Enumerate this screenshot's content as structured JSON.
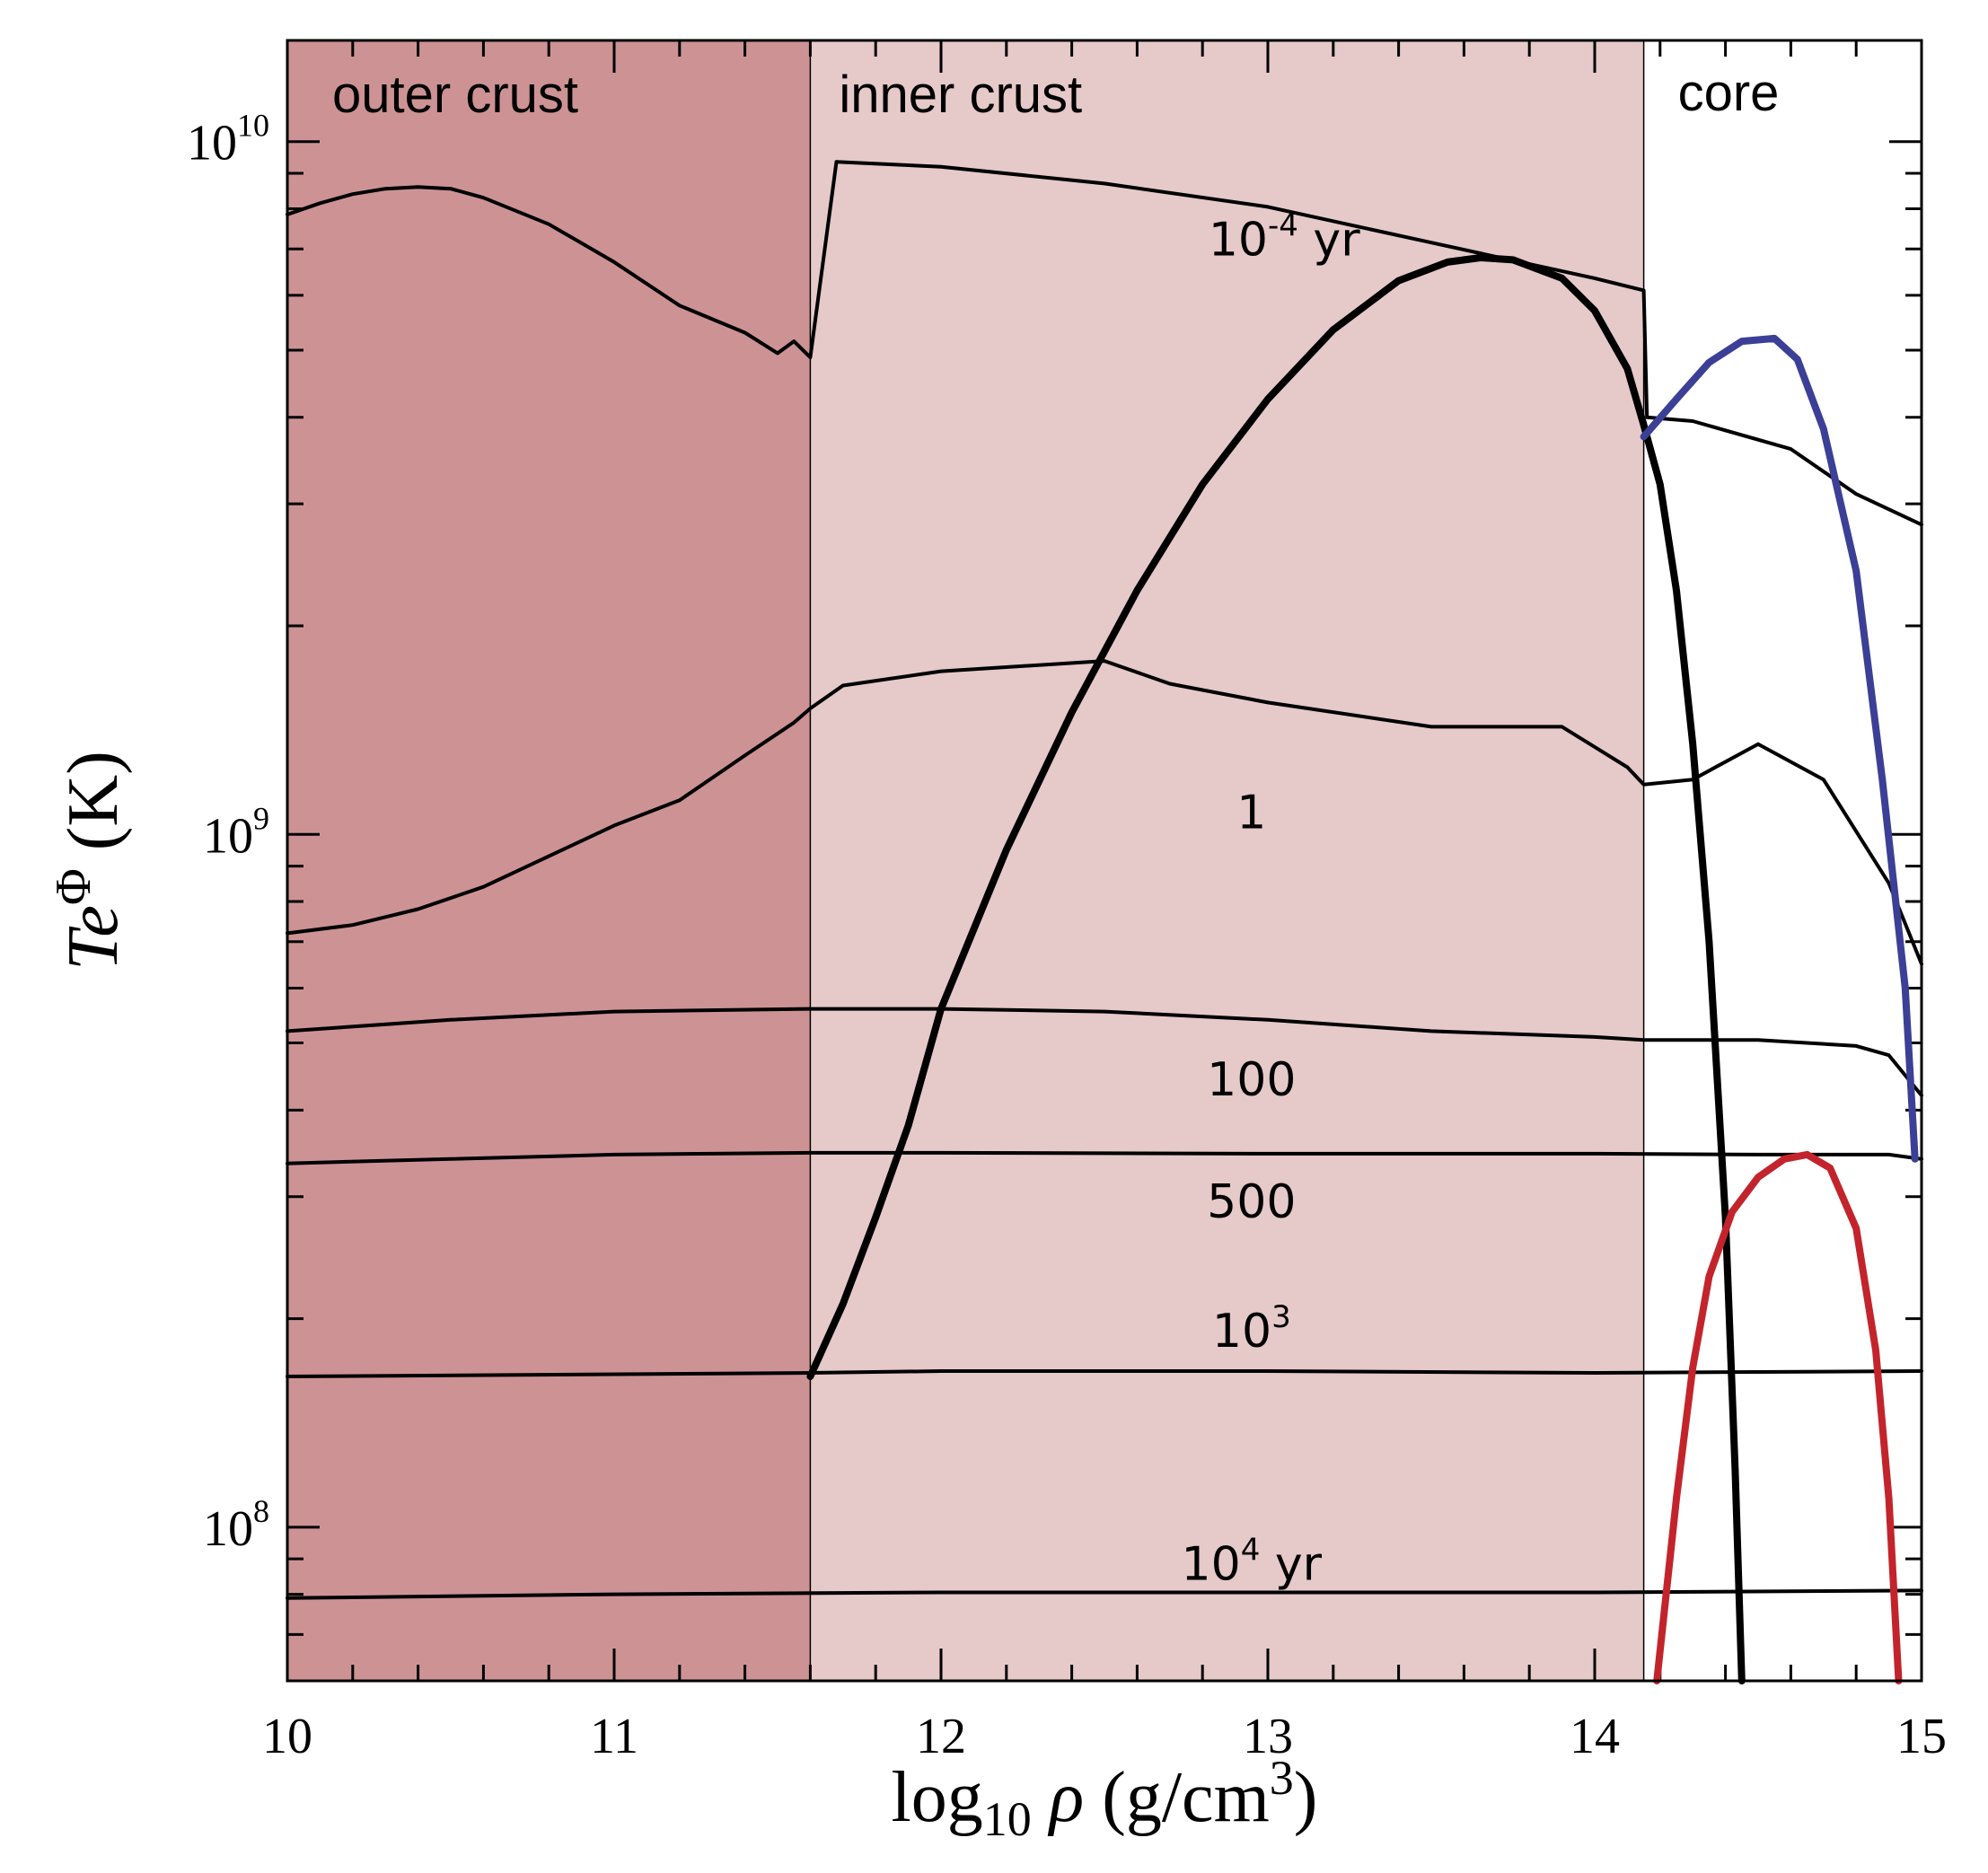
{
  "chart_data": {
    "type": "line",
    "xlabel": "log10 ρ (g/cm3)",
    "ylabel": "Te^Φ (K)",
    "xlim": [
      10,
      15
    ],
    "ylim": [
      60000000,
      14000000000
    ],
    "yscale": "log",
    "x_ticks": [
      {
        "value": 10,
        "label": "10"
      },
      {
        "value": 11,
        "label": "11"
      },
      {
        "value": 12,
        "label": "12"
      },
      {
        "value": 13,
        "label": "13"
      },
      {
        "value": 14,
        "label": "14"
      },
      {
        "value": 15,
        "label": "15"
      }
    ],
    "y_ticks": [
      {
        "value": 100000000,
        "base": "10",
        "exp": "8"
      },
      {
        "value": 1000000000,
        "base": "10",
        "exp": "9"
      },
      {
        "value": 10000000000,
        "base": "10",
        "exp": "10"
      }
    ],
    "regions": [
      {
        "name": "outer crust",
        "x_from": 10,
        "x_to": 11.6,
        "color": "#cd9394"
      },
      {
        "name": "inner crust",
        "x_from": 11.6,
        "x_to": 14.15,
        "color": "#e6c9c9"
      },
      {
        "name": "core",
        "x_from": 14.15,
        "x_to": 15,
        "color": "#ffffff"
      }
    ],
    "series": [
      {
        "name": "10^-4 yr",
        "label_base": "10",
        "label_exp": "-4",
        "label_unit": "yr",
        "label_at": [
          13.05,
          6850000000
        ],
        "color": "#000000",
        "width": "thin",
        "points": [
          [
            10,
            7850000000
          ],
          [
            10.1,
            8150000000
          ],
          [
            10.2,
            8400000000
          ],
          [
            10.3,
            8550000000
          ],
          [
            10.4,
            8600000000
          ],
          [
            10.5,
            8550000000
          ],
          [
            10.6,
            8300000000
          ],
          [
            10.8,
            7600000000
          ],
          [
            11.0,
            6700000000
          ],
          [
            11.2,
            5800000000
          ],
          [
            11.4,
            5300000000
          ],
          [
            11.5,
            4950000000
          ],
          [
            11.55,
            5150000000
          ],
          [
            11.6,
            4880000000
          ],
          [
            11.68,
            9350000000
          ],
          [
            12.0,
            9200000000
          ],
          [
            12.5,
            8700000000
          ],
          [
            13.0,
            8050000000
          ],
          [
            13.5,
            7150000000
          ],
          [
            14.0,
            6350000000
          ],
          [
            14.15,
            6100000000
          ],
          [
            14.16,
            4000000000
          ],
          [
            14.3,
            3950000000
          ],
          [
            14.6,
            3600000000
          ],
          [
            14.8,
            3100000000
          ],
          [
            15.0,
            2800000000
          ]
        ]
      },
      {
        "name": "1",
        "label": "1",
        "label_at": [
          12.95,
          1020000000
        ],
        "color": "#000000",
        "width": "thin",
        "points": [
          [
            10,
            720000000
          ],
          [
            10.2,
            740000000
          ],
          [
            10.4,
            780000000
          ],
          [
            10.6,
            840000000
          ],
          [
            10.8,
            930000000
          ],
          [
            11.0,
            1030000000
          ],
          [
            11.2,
            1120000000
          ],
          [
            11.4,
            1300000000
          ],
          [
            11.55,
            1450000000
          ],
          [
            11.6,
            1520000000
          ],
          [
            11.7,
            1640000000
          ],
          [
            12.0,
            1720000000
          ],
          [
            12.5,
            1780000000
          ],
          [
            12.7,
            1650000000
          ],
          [
            13.0,
            1550000000
          ],
          [
            13.5,
            1430000000
          ],
          [
            13.9,
            1430000000
          ],
          [
            14.1,
            1250000000
          ],
          [
            14.15,
            1180000000
          ],
          [
            14.3,
            1200000000
          ],
          [
            14.5,
            1350000000
          ],
          [
            14.7,
            1200000000
          ],
          [
            14.9,
            850000000
          ],
          [
            15.0,
            650000000
          ]
        ]
      },
      {
        "name": "100",
        "label": "100",
        "label_at": [
          12.95,
          420000000
        ],
        "color": "#000000",
        "width": "thin",
        "points": [
          [
            10,
            520000000
          ],
          [
            10.5,
            540000000
          ],
          [
            11.0,
            555000000
          ],
          [
            11.6,
            560000000
          ],
          [
            12.0,
            560000000
          ],
          [
            12.5,
            555000000
          ],
          [
            13.0,
            540000000
          ],
          [
            13.5,
            520000000
          ],
          [
            14.0,
            510000000
          ],
          [
            14.15,
            505000000
          ],
          [
            14.5,
            505000000
          ],
          [
            14.8,
            495000000
          ],
          [
            14.9,
            480000000
          ],
          [
            15.0,
            420000000
          ]
        ]
      },
      {
        "name": "500",
        "label": "500",
        "label_at": [
          12.95,
          280000000
        ],
        "color": "#000000",
        "width": "thin",
        "points": [
          [
            10,
            335000000
          ],
          [
            10.5,
            340000000
          ],
          [
            11.0,
            345000000
          ],
          [
            11.6,
            347000000
          ],
          [
            12.0,
            347000000
          ],
          [
            13.0,
            346000000
          ],
          [
            14.0,
            346000000
          ],
          [
            14.5,
            345000000
          ],
          [
            14.9,
            345000000
          ],
          [
            15.0,
            340000000
          ]
        ]
      },
      {
        "name": "10^3",
        "label_base": "10",
        "label_exp": "3",
        "label_unit": "",
        "label_at": [
          12.95,
          182000000
        ],
        "color": "#000000",
        "width": "thin",
        "points": [
          [
            10,
            165000000
          ],
          [
            11.6,
            167000000
          ],
          [
            12.0,
            168000000
          ],
          [
            13.0,
            168000000
          ],
          [
            14.0,
            167000000
          ],
          [
            15.0,
            168000000
          ]
        ]
      },
      {
        "name": "10^4 yr",
        "label_base": "10",
        "label_exp": "4",
        "label_unit": "yr",
        "label_at": [
          12.95,
          84000000
        ],
        "color": "#000000",
        "width": "thin",
        "points": [
          [
            10,
            79000000
          ],
          [
            11.0,
            80000000
          ],
          [
            12.0,
            80500000
          ],
          [
            13.0,
            80500000
          ],
          [
            14.0,
            80500000
          ],
          [
            15.0,
            81000000
          ]
        ]
      },
      {
        "name": "crust profile",
        "color": "#000000",
        "width": "thick",
        "points": [
          [
            11.6,
            165000000
          ],
          [
            11.7,
            210000000
          ],
          [
            11.8,
            280000000
          ],
          [
            11.9,
            380000000
          ],
          [
            12.0,
            560000000
          ],
          [
            12.2,
            950000000
          ],
          [
            12.4,
            1500000000
          ],
          [
            12.6,
            2250000000
          ],
          [
            12.8,
            3200000000
          ],
          [
            13.0,
            4250000000
          ],
          [
            13.2,
            5350000000
          ],
          [
            13.4,
            6300000000
          ],
          [
            13.55,
            6700000000
          ],
          [
            13.65,
            6800000000
          ],
          [
            13.75,
            6750000000
          ],
          [
            13.9,
            6350000000
          ],
          [
            14.0,
            5700000000
          ],
          [
            14.1,
            4700000000
          ],
          [
            14.15,
            3900000000
          ],
          [
            14.2,
            3200000000
          ],
          [
            14.25,
            2250000000
          ],
          [
            14.3,
            1350000000
          ],
          [
            14.35,
            700000000
          ],
          [
            14.4,
            280000000
          ],
          [
            14.43,
            120000000
          ],
          [
            14.45,
            60000000
          ]
        ]
      },
      {
        "name": "core profile (blue)",
        "color": "#3c3f96",
        "width": "thick",
        "points": [
          [
            14.15,
            3750000000
          ],
          [
            14.25,
            4250000000
          ],
          [
            14.35,
            4800000000
          ],
          [
            14.45,
            5150000000
          ],
          [
            14.55,
            5200000000
          ],
          [
            14.62,
            4850000000
          ],
          [
            14.7,
            3850000000
          ],
          [
            14.8,
            2400000000
          ],
          [
            14.88,
            1200000000
          ],
          [
            14.95,
            600000000
          ],
          [
            14.98,
            340000000
          ]
        ]
      },
      {
        "name": "core profile (red)",
        "color": "#c3242c",
        "width": "thick",
        "points": [
          [
            14.19,
            60000000
          ],
          [
            14.25,
            110000000
          ],
          [
            14.3,
            170000000
          ],
          [
            14.35,
            230000000
          ],
          [
            14.42,
            285000000
          ],
          [
            14.5,
            320000000
          ],
          [
            14.58,
            340000000
          ],
          [
            14.65,
            345000000
          ],
          [
            14.72,
            330000000
          ],
          [
            14.8,
            270000000
          ],
          [
            14.86,
            180000000
          ],
          [
            14.9,
            110000000
          ],
          [
            14.93,
            60000000
          ]
        ]
      }
    ]
  }
}
